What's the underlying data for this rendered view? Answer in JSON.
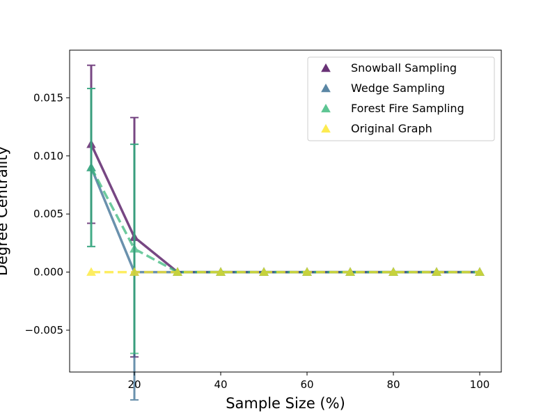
{
  "chart_data": {
    "type": "line",
    "title": "",
    "xlabel": "Sample Size (%)",
    "ylabel": "Degree Centrality",
    "xlim": [
      5,
      105
    ],
    "ylim": [
      -0.0086,
      0.0191
    ],
    "x_ticks": [
      20,
      40,
      60,
      80,
      100
    ],
    "y_ticks": [
      -0.005,
      0.0,
      0.005,
      0.01,
      0.015
    ],
    "x_tick_labels": [
      "20",
      "40",
      "60",
      "80",
      "100"
    ],
    "y_tick_labels": [
      "−0.005",
      "0.000",
      "0.005",
      "0.010",
      "0.015"
    ],
    "grid": false,
    "legend_position": "top-right",
    "x": [
      10,
      20,
      30,
      40,
      50,
      60,
      70,
      80,
      90,
      100
    ],
    "series": [
      {
        "name": "Snowball Sampling",
        "color": "#440154",
        "linestyle": "solid",
        "marker": "triangle",
        "values": [
          0.011,
          0.003,
          0,
          0,
          0,
          0,
          0,
          0,
          0,
          0
        ],
        "errors": [
          0.0068,
          0.0103,
          0,
          0,
          0,
          0,
          0,
          0,
          0,
          0
        ]
      },
      {
        "name": "Wedge Sampling",
        "color": "#31688e",
        "linestyle": "solid",
        "marker": "triangle",
        "values": [
          0.009,
          0,
          0,
          0,
          0,
          0,
          0,
          0,
          0,
          0
        ],
        "errors": [
          0.0068,
          0.011,
          0,
          0,
          0,
          0,
          0,
          0,
          0,
          0
        ]
      },
      {
        "name": "Forest Fire Sampling",
        "color": "#35b779",
        "linestyle": "dashed",
        "marker": "triangle",
        "values": [
          0.009,
          0.002,
          0,
          0,
          0,
          0,
          0,
          0,
          0,
          0
        ],
        "errors": [
          0.0068,
          0.009,
          0,
          0,
          0,
          0,
          0,
          0,
          0,
          0
        ]
      },
      {
        "name": "Original Graph",
        "color": "#fde725",
        "linestyle": "dashed",
        "marker": "triangle",
        "values": [
          0,
          0,
          0,
          0,
          0,
          0,
          0,
          0,
          0,
          0
        ],
        "errors": [
          0,
          0,
          0,
          0,
          0,
          0,
          0,
          0,
          0,
          0
        ]
      }
    ]
  }
}
